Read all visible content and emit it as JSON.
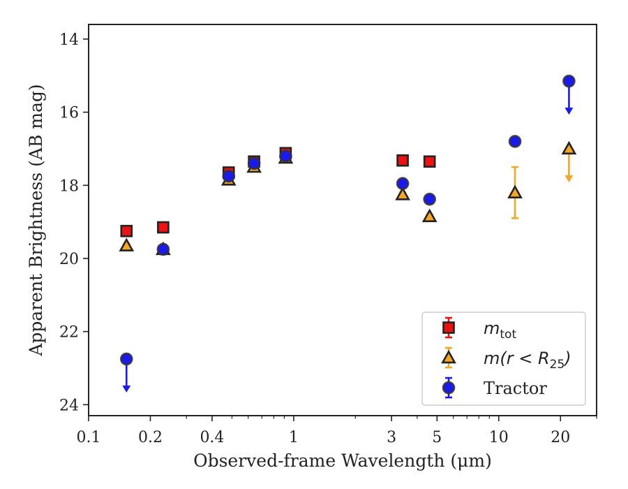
{
  "chart_data": {
    "type": "scatter",
    "title": "",
    "xlabel": "Observed-frame Wavelength (μm)",
    "ylabel": "Apparent Brightness (AB mag)",
    "xscale": "log",
    "xlim": [
      0.1,
      30
    ],
    "ylim": [
      24.3,
      13.6
    ],
    "y_inverted": true,
    "grid": false,
    "legend_position": "lower-right",
    "x_ticks": [
      {
        "value": 0.1,
        "label": "0.1"
      },
      {
        "value": 0.2,
        "label": "0.2"
      },
      {
        "value": 0.4,
        "label": "0.4"
      },
      {
        "value": 1,
        "label": "1"
      },
      {
        "value": 3,
        "label": "3"
      },
      {
        "value": 5,
        "label": "5"
      },
      {
        "value": 10,
        "label": "10"
      },
      {
        "value": 20,
        "label": "20"
      }
    ],
    "y_ticks": [
      {
        "value": 14,
        "label": "14"
      },
      {
        "value": 16,
        "label": "16"
      },
      {
        "value": 18,
        "label": "18"
      },
      {
        "value": 20,
        "label": "20"
      },
      {
        "value": 22,
        "label": "22"
      },
      {
        "value": 24,
        "label": "24"
      }
    ],
    "series": [
      {
        "name": "m_tot",
        "legend_label": {
          "main": "m",
          "sub": "tot"
        },
        "marker": "square",
        "color": "#ee1111",
        "edge_color": "#222222",
        "points": [
          {
            "x": 0.153,
            "y": 19.25,
            "err": 0.06
          },
          {
            "x": 0.231,
            "y": 19.15,
            "err": 0.06
          },
          {
            "x": 0.482,
            "y": 17.65,
            "err": 0.05
          },
          {
            "x": 0.641,
            "y": 17.35,
            "err": 0.05
          },
          {
            "x": 0.914,
            "y": 17.12,
            "err": 0.05
          },
          {
            "x": 3.4,
            "y": 17.32,
            "err": 0.05
          },
          {
            "x": 4.6,
            "y": 17.35,
            "err": 0.05
          }
        ]
      },
      {
        "name": "m(r < R25)",
        "legend_label": {
          "main": "m(r < R",
          "sub": "25",
          "tail": ")"
        },
        "marker": "triangle",
        "color": "#f5a623",
        "edge_color": "#222222",
        "points": [
          {
            "x": 0.153,
            "y": 19.65,
            "err": 0.06
          },
          {
            "x": 0.231,
            "y": 19.75,
            "err": 0.06
          },
          {
            "x": 0.482,
            "y": 17.85,
            "err": 0.05
          },
          {
            "x": 0.641,
            "y": 17.5,
            "err": 0.05
          },
          {
            "x": 0.914,
            "y": 17.25,
            "err": 0.05
          },
          {
            "x": 3.4,
            "y": 18.25,
            "err": 0.05
          },
          {
            "x": 4.6,
            "y": 18.85,
            "err": 0.05
          },
          {
            "x": 12.0,
            "y": 18.2,
            "err": 0.7
          },
          {
            "x": 22.0,
            "y": 17.0,
            "upper_limit": true
          }
        ]
      },
      {
        "name": "Tractor",
        "legend_label": {
          "main": "Tractor"
        },
        "marker": "circle",
        "color": "#1a1aee",
        "edge_color": "#333333",
        "points": [
          {
            "x": 0.153,
            "y": 22.75,
            "upper_limit": true
          },
          {
            "x": 0.231,
            "y": 19.75,
            "err": 0.06
          },
          {
            "x": 0.482,
            "y": 17.75,
            "err": 0.05
          },
          {
            "x": 0.641,
            "y": 17.4,
            "err": 0.05
          },
          {
            "x": 0.914,
            "y": 17.2,
            "err": 0.05
          },
          {
            "x": 3.4,
            "y": 17.95,
            "err": 0.05
          },
          {
            "x": 4.6,
            "y": 18.38,
            "err": 0.05
          },
          {
            "x": 12.0,
            "y": 16.8,
            "err": 0.05
          },
          {
            "x": 22.0,
            "y": 15.15,
            "upper_limit": true
          }
        ]
      }
    ]
  }
}
